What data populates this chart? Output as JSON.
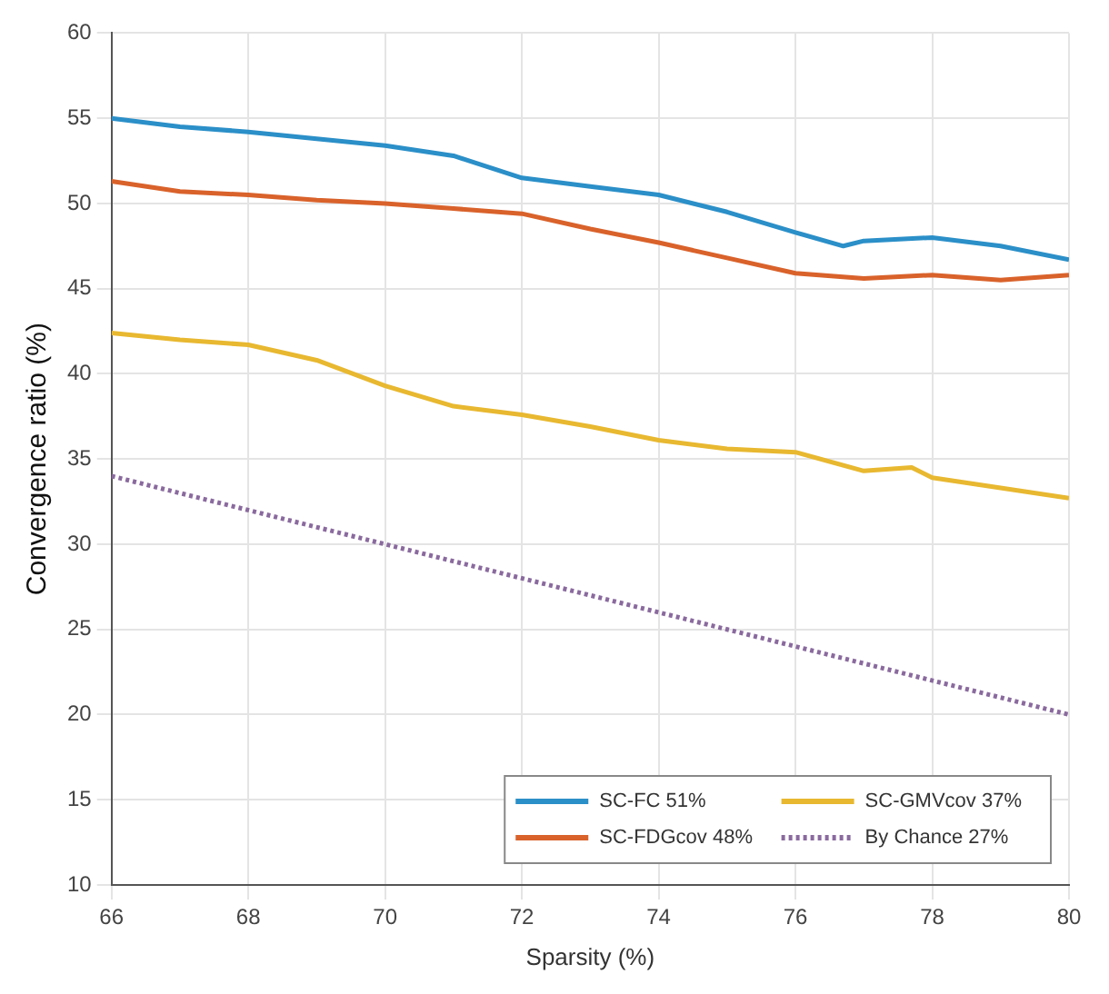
{
  "chart_data": {
    "type": "line",
    "xlabel": "Sparsity (%)",
    "ylabel": "Convergence ratio (%)",
    "xlim": [
      66,
      80
    ],
    "xticks": [
      66,
      68,
      70,
      72,
      74,
      76,
      78,
      80
    ],
    "ylim": [
      10,
      60
    ],
    "yticks": [
      10,
      15,
      20,
      25,
      30,
      35,
      40,
      45,
      50,
      55,
      60
    ],
    "grid": true,
    "legend": "bottom right",
    "marker": "none",
    "series": [
      {
        "name": "SC-FC 51%",
        "color": "#2b8fc8",
        "x": [
          66,
          67,
          68,
          69,
          70,
          71,
          72,
          73,
          74,
          75,
          76,
          76.7,
          77,
          78,
          79,
          80
        ],
        "values": [
          55,
          54.5,
          54.2,
          53.8,
          53.4,
          52.8,
          51.5,
          51,
          50.5,
          49.5,
          48.3,
          47.5,
          47.8,
          48,
          47.5,
          46.7
        ]
      },
      {
        "name": "SC-FDGcov 48%",
        "color": "#d9622b",
        "x": [
          66,
          67,
          68,
          69,
          70,
          71,
          72,
          73,
          74,
          75,
          76,
          77,
          78,
          79,
          80
        ],
        "values": [
          51.3,
          50.7,
          50.5,
          50.2,
          50,
          49.7,
          49.4,
          48.5,
          47.7,
          46.8,
          45.9,
          45.6,
          45.8,
          45.5,
          45.8
        ]
      },
      {
        "name": "SC-GMVcov 37%",
        "color": "#e8b830",
        "x": [
          66,
          67,
          68,
          69,
          70,
          71,
          72,
          73,
          74,
          75,
          76,
          77,
          77.7,
          78,
          79,
          80
        ],
        "values": [
          42.4,
          42,
          41.7,
          40.8,
          39.3,
          38.1,
          37.6,
          36.9,
          36.1,
          35.6,
          35.4,
          34.3,
          34.5,
          33.9,
          33.3,
          32.7
        ]
      },
      {
        "name": "By Chance 27%",
        "color": "#8a6a9e",
        "line_style": "dotted",
        "x": [
          66,
          80
        ],
        "values": [
          34,
          20
        ]
      }
    ]
  }
}
